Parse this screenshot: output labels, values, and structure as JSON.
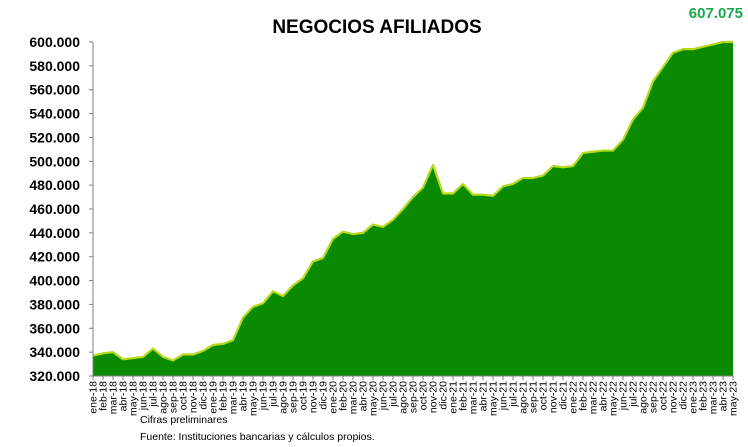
{
  "colors": {
    "area_fill": "#0a8a00",
    "area_stroke": "#b6d91a",
    "final_value": "#19a84a",
    "axis": "#7f7f7f"
  },
  "chart_data": {
    "type": "area",
    "title": "NEGOCIOS AFILIADOS",
    "final_value_label": "607.075",
    "xlabel": "",
    "ylabel": "",
    "ylim": [
      320000,
      600000
    ],
    "y_ticks": [
      "600.000",
      "580.000",
      "560.000",
      "540.000",
      "520.000",
      "500.000",
      "480.000",
      "460.000",
      "440.000",
      "420.000",
      "400.000",
      "380.000",
      "360.000",
      "340.000",
      "320.000"
    ],
    "y_tick_values": [
      600000,
      580000,
      560000,
      540000,
      520000,
      500000,
      480000,
      460000,
      440000,
      420000,
      400000,
      380000,
      360000,
      340000,
      320000
    ],
    "grid": false,
    "legend": "none",
    "categories": [
      "ene-18",
      "feb-18",
      "mar-18",
      "abr-18",
      "may-18",
      "jun-18",
      "jul-18",
      "ago-18",
      "sep-18",
      "oct-18",
      "nov-18",
      "dic-18",
      "ene-19",
      "feb-19",
      "mar-19",
      "abr-19",
      "may-19",
      "jun-19",
      "jul-19",
      "ago-19",
      "sep-19",
      "oct-19",
      "nov-19",
      "dic-19",
      "ene-20",
      "feb-20",
      "mar-20",
      "abr-20",
      "may-20",
      "jun-20",
      "jul-20",
      "ago-20",
      "sep-20",
      "oct-20",
      "nov-20",
      "dic-20",
      "ene-21",
      "feb-21",
      "mar-21",
      "abr-21",
      "may-21",
      "jun-21",
      "jul-21",
      "ago-21",
      "sep-21",
      "oct-21",
      "nov-21",
      "dic-21",
      "ene-22",
      "feb-22",
      "mar-22",
      "abr-22",
      "may-22",
      "jun-22",
      "jul-22",
      "ago-22",
      "sep-22",
      "oct-22",
      "nov-22",
      "dic-22",
      "ene-23",
      "feb-23",
      "mar-23",
      "abr-23",
      "may-23"
    ],
    "values": [
      337000,
      339000,
      340000,
      334000,
      335000,
      336000,
      343000,
      336000,
      333000,
      338000,
      338000,
      341000,
      346000,
      347000,
      350000,
      369000,
      378000,
      381000,
      391000,
      387000,
      396000,
      402000,
      416000,
      419000,
      435000,
      441000,
      439000,
      440000,
      447000,
      445000,
      451000,
      460000,
      470000,
      478000,
      497000,
      473000,
      473000,
      481000,
      472000,
      472000,
      471000,
      479000,
      481000,
      486000,
      486000,
      488000,
      496000,
      495000,
      496000,
      507000,
      508000,
      509000,
      509000,
      518000,
      535000,
      545000,
      567000,
      579000,
      591000,
      594000,
      594000,
      596000,
      598000,
      601000,
      601000
    ],
    "notes": [
      "Cifras preliminares",
      "Fuente: Instituciones bancarias y cálculos propios."
    ]
  }
}
